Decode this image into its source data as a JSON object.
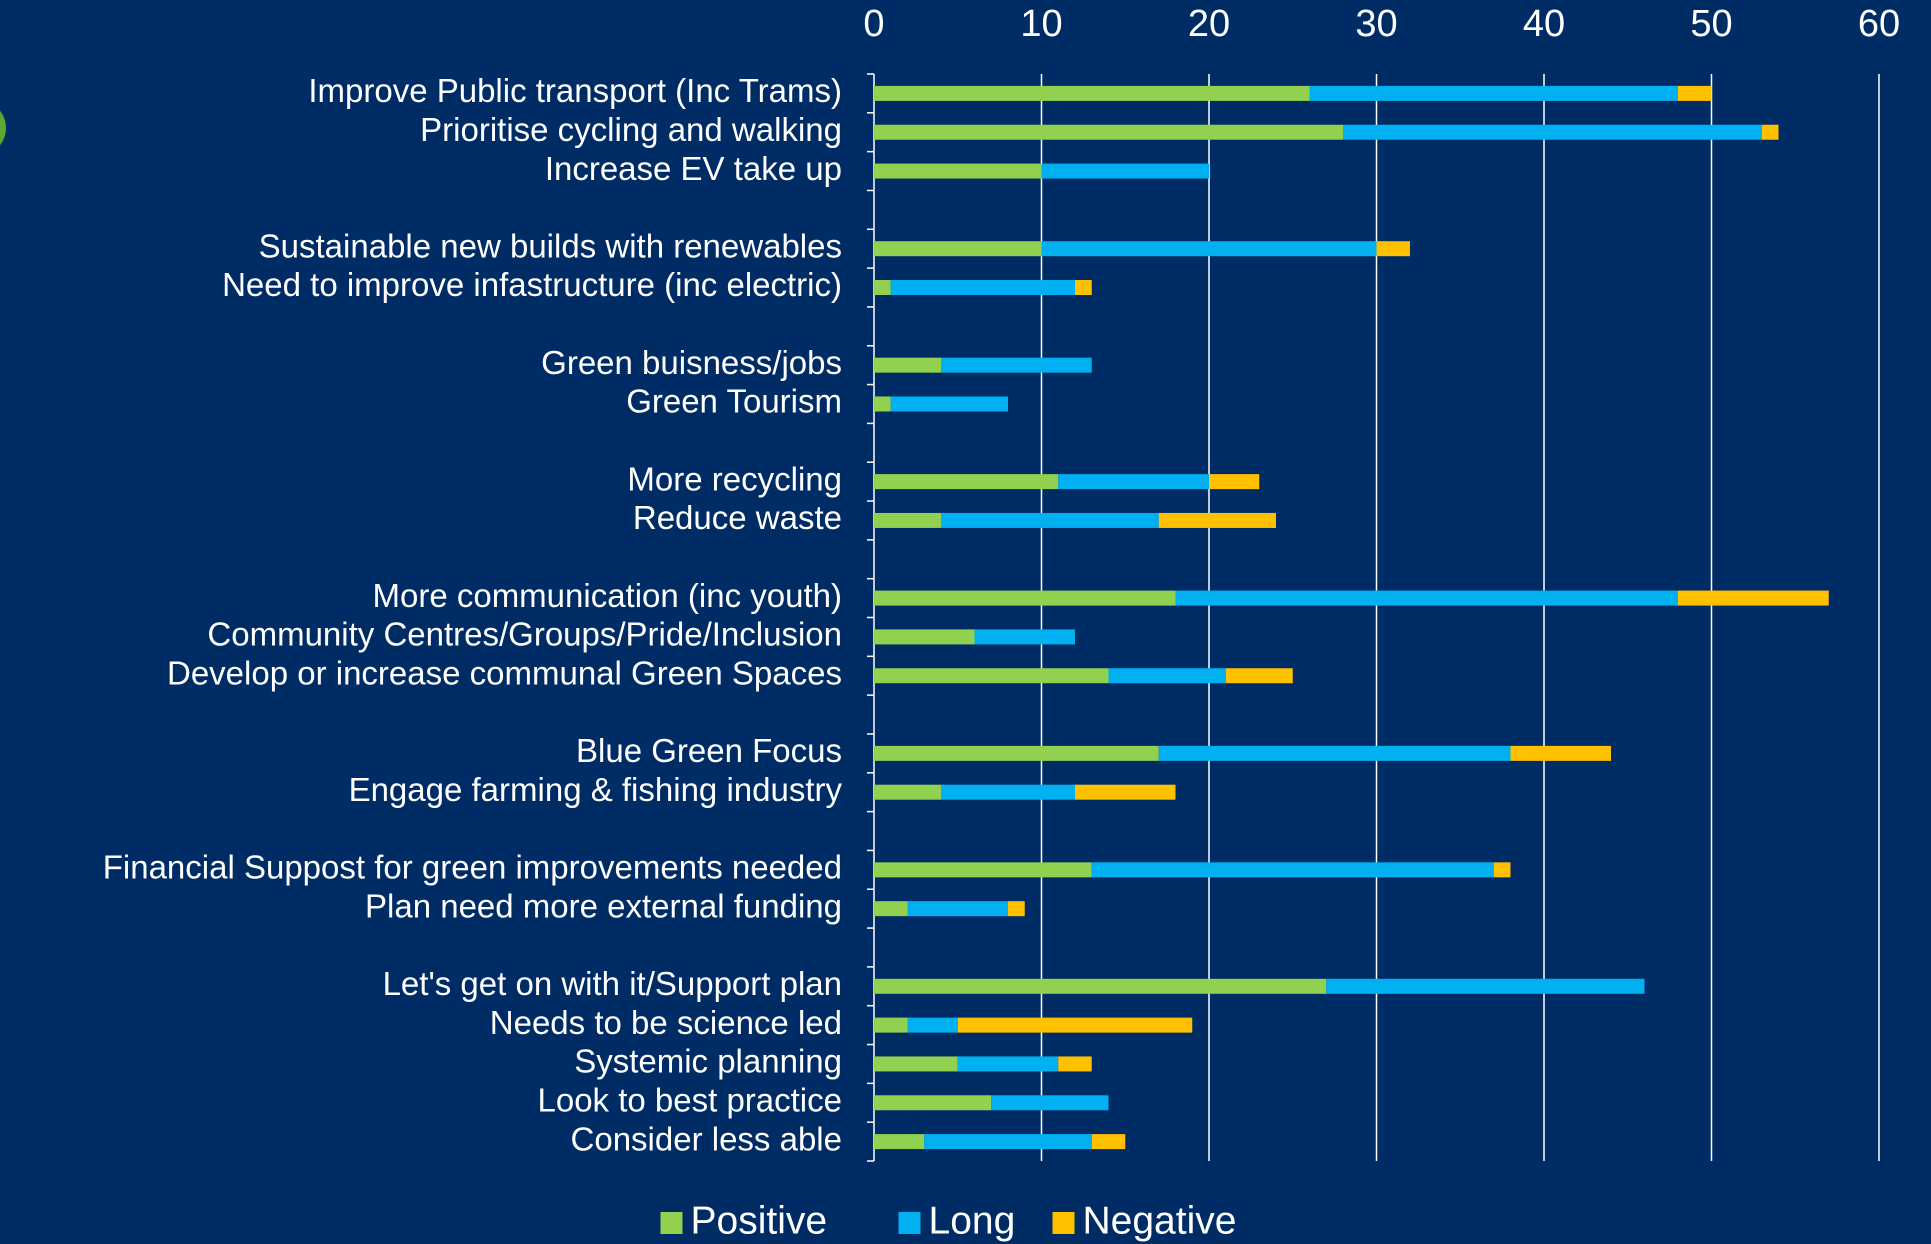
{
  "chart_data": {
    "type": "stacked_barh",
    "categories": [
      "Improve Public transport  (Inc Trams)",
      "Prioritise cycling and walking",
      "Increase EV take up",
      null,
      "Sustainable new builds with renewables",
      "Need to improve infastructure (inc electric)",
      null,
      "Green buisness/jobs",
      "Green Tourism",
      null,
      "More recycling",
      "Reduce waste",
      null,
      "More communication (inc youth)",
      "Community Centres/Groups/Pride/Inclusion",
      "Develop or increase communal  Green Spaces",
      null,
      "Blue Green Focus",
      "Engage farming & fishing industry",
      null,
      "Financial Suppost for green improvements needed",
      "Plan need more external funding",
      null,
      "Let's get on with it/Support plan",
      "Needs to be science led",
      "Systemic planning",
      "Look to best practice",
      "Consider less able"
    ],
    "series": [
      {
        "name": "Positive",
        "color": "#92d050",
        "values": [
          26,
          28,
          10,
          null,
          10,
          1,
          null,
          4,
          1,
          null,
          11,
          4,
          null,
          18,
          6,
          14,
          null,
          17,
          4,
          null,
          13,
          2,
          null,
          27,
          2,
          5,
          7,
          3
        ]
      },
      {
        "name": "Long",
        "color": "#00b0f0",
        "values": [
          22,
          25,
          10,
          null,
          20,
          11,
          null,
          9,
          7,
          null,
          9,
          13,
          null,
          30,
          6,
          7,
          null,
          21,
          8,
          null,
          24,
          6,
          null,
          19,
          3,
          6,
          7,
          10
        ]
      },
      {
        "name": "Negative",
        "color": "#ffc000",
        "values": [
          2,
          1,
          0,
          null,
          2,
          1,
          null,
          0,
          0,
          null,
          3,
          7,
          null,
          9,
          0,
          4,
          null,
          6,
          6,
          null,
          1,
          1,
          null,
          0,
          14,
          2,
          0,
          2
        ]
      }
    ],
    "xlim": [
      0,
      60
    ],
    "xticks": [
      0,
      10,
      20,
      30,
      40,
      50,
      60
    ],
    "grid": true,
    "legend": "bottom"
  }
}
